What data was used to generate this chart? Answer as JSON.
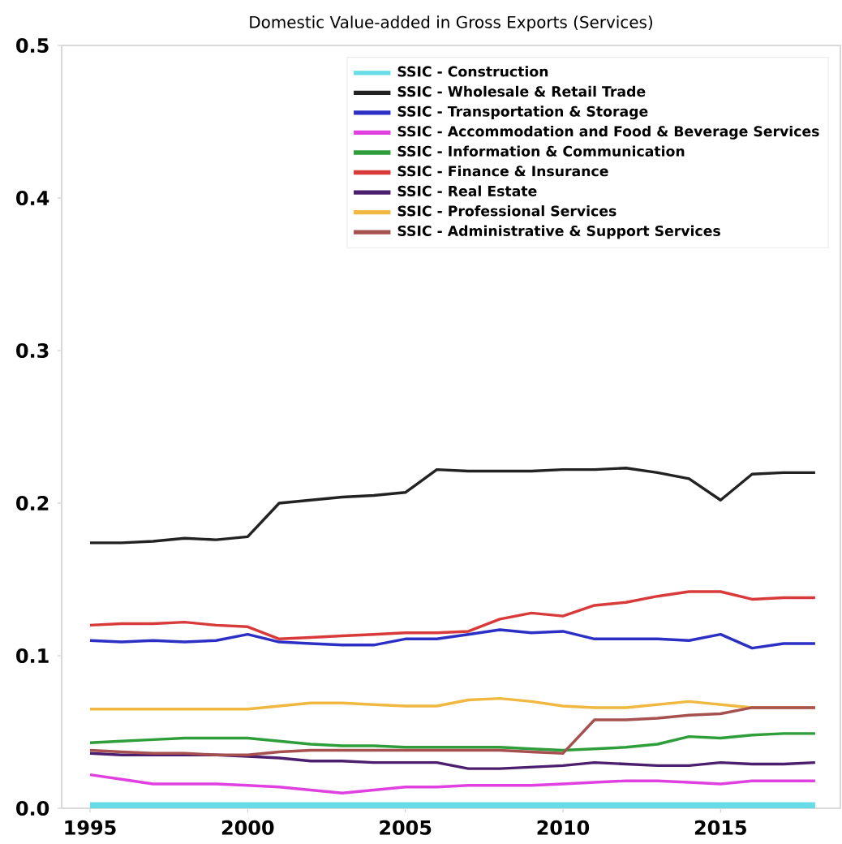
{
  "chart_data": {
    "type": "line",
    "title": "Domestic Value-added in Gross Exports (Services)",
    "x": [
      1995,
      1996,
      1997,
      1998,
      1999,
      2000,
      2001,
      2002,
      2003,
      2004,
      2005,
      2006,
      2007,
      2008,
      2009,
      2010,
      2011,
      2012,
      2013,
      2014,
      2015,
      2016,
      2017,
      2018
    ],
    "xlim": [
      1994.1,
      2018.8
    ],
    "xticks": [
      1995,
      2000,
      2005,
      2010,
      2015
    ],
    "ylim": [
      0,
      0.5
    ],
    "yticks": [
      {
        "value": 0,
        "label": "0.0"
      },
      0.1,
      0.2,
      0.3,
      0.4,
      0.5
    ],
    "legend": "top right",
    "grid": false,
    "series": [
      {
        "name": "SSIC - Construction",
        "color": "#66dde6",
        "values": [
          0.002,
          0.002,
          0.002,
          0.002,
          0.002,
          0.002,
          0.002,
          0.002,
          0.002,
          0.002,
          0.002,
          0.002,
          0.002,
          0.002,
          0.002,
          0.002,
          0.002,
          0.002,
          0.002,
          0.002,
          0.002,
          0.002,
          0.002,
          0.002
        ]
      },
      {
        "name": "SSIC - Wholesale & Retail Trade",
        "color": "#222222",
        "values": [
          0.174,
          0.174,
          0.175,
          0.177,
          0.176,
          0.178,
          0.2,
          0.202,
          0.204,
          0.205,
          0.207,
          0.222,
          0.221,
          0.221,
          0.221,
          0.222,
          0.222,
          0.223,
          0.22,
          0.216,
          0.202,
          0.219,
          0.22,
          0.22
        ]
      },
      {
        "name": "SSIC - Transportation & Storage",
        "color": "#2b2fc4",
        "values": [
          0.11,
          0.109,
          0.11,
          0.109,
          0.11,
          0.114,
          0.109,
          0.108,
          0.107,
          0.107,
          0.111,
          0.111,
          0.114,
          0.117,
          0.115,
          0.116,
          0.111,
          0.111,
          0.111,
          0.11,
          0.114,
          0.105,
          0.108,
          0.108
        ]
      },
      {
        "name": "SSIC - Accommodation and Food & Beverage Services",
        "color": "#e040e0",
        "values": [
          0.022,
          0.019,
          0.016,
          0.016,
          0.016,
          0.015,
          0.014,
          0.012,
          0.01,
          0.012,
          0.014,
          0.014,
          0.015,
          0.015,
          0.015,
          0.016,
          0.017,
          0.018,
          0.018,
          0.017,
          0.016,
          0.018,
          0.018,
          0.018
        ]
      },
      {
        "name": "SSIC - Information & Communication",
        "color": "#2e9e3a",
        "values": [
          0.043,
          0.044,
          0.045,
          0.046,
          0.046,
          0.046,
          0.044,
          0.042,
          0.041,
          0.041,
          0.04,
          0.04,
          0.04,
          0.04,
          0.039,
          0.038,
          0.039,
          0.04,
          0.042,
          0.047,
          0.046,
          0.048,
          0.049,
          0.049
        ]
      },
      {
        "name": "SSIC - Finance & Insurance",
        "color": "#d83a3a",
        "values": [
          0.12,
          0.121,
          0.121,
          0.122,
          0.12,
          0.119,
          0.111,
          0.112,
          0.113,
          0.114,
          0.115,
          0.115,
          0.116,
          0.124,
          0.128,
          0.126,
          0.133,
          0.135,
          0.139,
          0.142,
          0.142,
          0.137,
          0.138,
          0.138
        ]
      },
      {
        "name": "SSIC - Real Estate",
        "color": "#4b1e6e",
        "values": [
          0.036,
          0.035,
          0.035,
          0.035,
          0.035,
          0.034,
          0.033,
          0.031,
          0.031,
          0.03,
          0.03,
          0.03,
          0.026,
          0.026,
          0.027,
          0.028,
          0.03,
          0.029,
          0.028,
          0.028,
          0.03,
          0.029,
          0.029,
          0.03
        ]
      },
      {
        "name": "SSIC - Professional Services",
        "color": "#f0b840",
        "values": [
          0.065,
          0.065,
          0.065,
          0.065,
          0.065,
          0.065,
          0.067,
          0.069,
          0.069,
          0.068,
          0.067,
          0.067,
          0.071,
          0.072,
          0.07,
          0.067,
          0.066,
          0.066,
          0.068,
          0.07,
          0.068,
          0.066,
          0.066,
          0.066
        ]
      },
      {
        "name": "SSIC - Administrative & Support Services",
        "color": "#a65050",
        "values": [
          0.038,
          0.037,
          0.036,
          0.036,
          0.035,
          0.035,
          0.037,
          0.038,
          0.038,
          0.038,
          0.038,
          0.038,
          0.038,
          0.038,
          0.037,
          0.036,
          0.058,
          0.058,
          0.059,
          0.061,
          0.062,
          0.066,
          0.066,
          0.066
        ]
      }
    ]
  }
}
